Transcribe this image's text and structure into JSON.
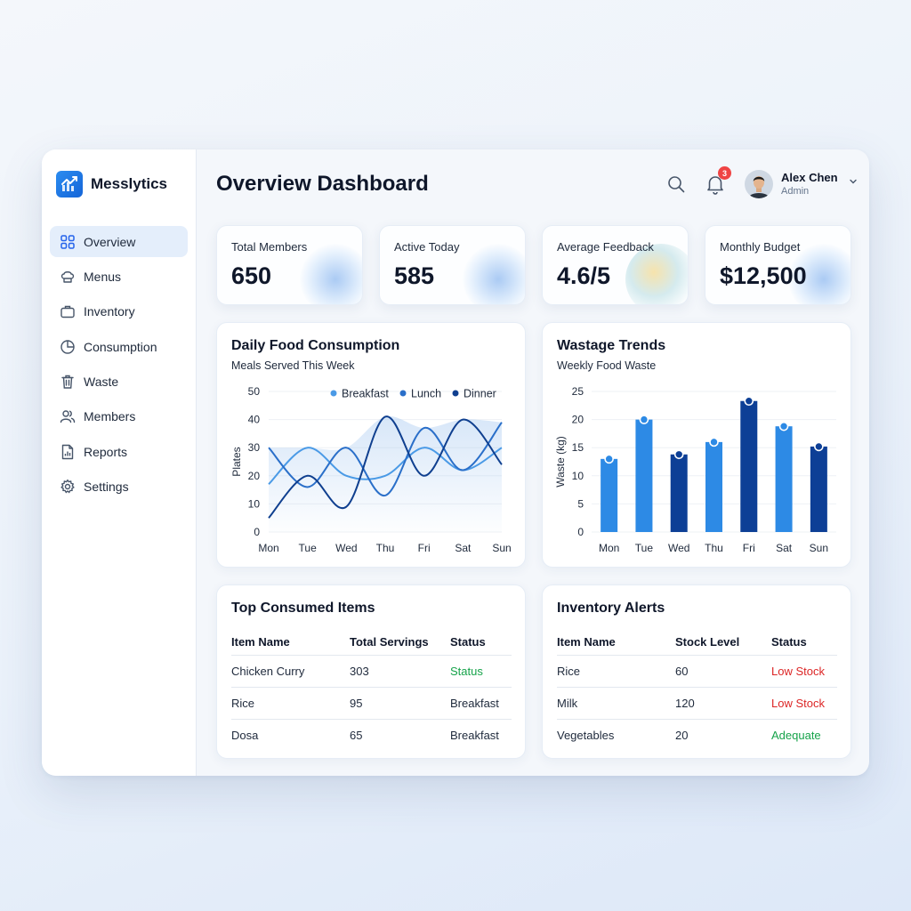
{
  "brand": {
    "name": "Messlytics",
    "icon": "trend-chart-icon"
  },
  "nav": [
    {
      "label": "Overview",
      "icon": "grid-icon",
      "active": true
    },
    {
      "label": "Menus",
      "icon": "chef-hat-icon"
    },
    {
      "label": "Inventory",
      "icon": "briefcase-icon"
    },
    {
      "label": "Consumption",
      "icon": "pie-chart-icon"
    },
    {
      "label": "Waste",
      "icon": "trash-icon"
    },
    {
      "label": "Members",
      "icon": "users-icon"
    },
    {
      "label": "Reports",
      "icon": "report-icon"
    },
    {
      "label": "Settings",
      "icon": "gear-icon"
    }
  ],
  "header": {
    "title": "Overview Dashboard",
    "notifications": "3",
    "user": {
      "name": "Alex Chen",
      "role": "Admin"
    }
  },
  "stats": [
    {
      "label": "Total Members",
      "value": "650"
    },
    {
      "label": "Active Today",
      "value": "585"
    },
    {
      "label": "Average Feedback",
      "value": "4.6/5"
    },
    {
      "label": "Monthly Budget",
      "value": "$12,500"
    }
  ],
  "consumption_card": {
    "title": "Daily Food Consumption",
    "subtitle": "Meals Served This Week"
  },
  "waste_card": {
    "title": "Wastage Trends",
    "subtitle": "Weekly Food Waste"
  },
  "top_items": {
    "title": "Top Consumed Items",
    "headers": [
      "Item Name",
      "Total Servings",
      "Status"
    ],
    "rows": [
      [
        "Chicken Curry",
        "303",
        "Status"
      ],
      [
        "Rice",
        "95",
        "Breakfast"
      ],
      [
        "Dosa",
        "65",
        "Breakfast"
      ]
    ]
  },
  "inventory_alerts": {
    "title": "Inventory Alerts",
    "headers": [
      "Item Name",
      "Stock Level",
      "Status"
    ],
    "rows": [
      [
        "Rice",
        "60",
        "Low Stock"
      ],
      [
        "Milk",
        "120",
        "Low Stock"
      ],
      [
        "Vegetables",
        "20",
        "Adequate"
      ]
    ]
  },
  "chart_data": [
    {
      "type": "line",
      "ylabel": "Plates",
      "ylim": [
        0,
        50
      ],
      "yticks": [
        0,
        10,
        20,
        30,
        40,
        50
      ],
      "x": [
        "Mon",
        "Tue",
        "Wed",
        "Thu",
        "Fri",
        "Sat",
        "Sun"
      ],
      "legend": "top-right",
      "series": [
        {
          "name": "Breakfast",
          "color": "#4a9ae6",
          "values": [
            17,
            30,
            20,
            20,
            30,
            22,
            30
          ]
        },
        {
          "name": "Lunch",
          "color": "#2a6fc9",
          "values": [
            30,
            16,
            30,
            13,
            37,
            22,
            39
          ]
        },
        {
          "name": "Dinner",
          "color": "#0f3f8f",
          "values": [
            5,
            20,
            9,
            41,
            20,
            40,
            24
          ]
        }
      ]
    },
    {
      "type": "bar",
      "ylabel": "Waste (kg)",
      "ylim": [
        0,
        25
      ],
      "yticks": [
        0,
        5,
        10,
        15,
        20,
        25
      ],
      "categories": [
        "Mon",
        "Tue",
        "Wed",
        "Thu",
        "Fri",
        "Sat",
        "Sun"
      ],
      "values": [
        13,
        20,
        13.8,
        16,
        23.3,
        18.8,
        15.2
      ],
      "colors": [
        "#2d8ae5",
        "#2d8ae5",
        "#0d3f96",
        "#2d8ae5",
        "#0d3f96",
        "#2d8ae5",
        "#0d3f96"
      ]
    }
  ]
}
